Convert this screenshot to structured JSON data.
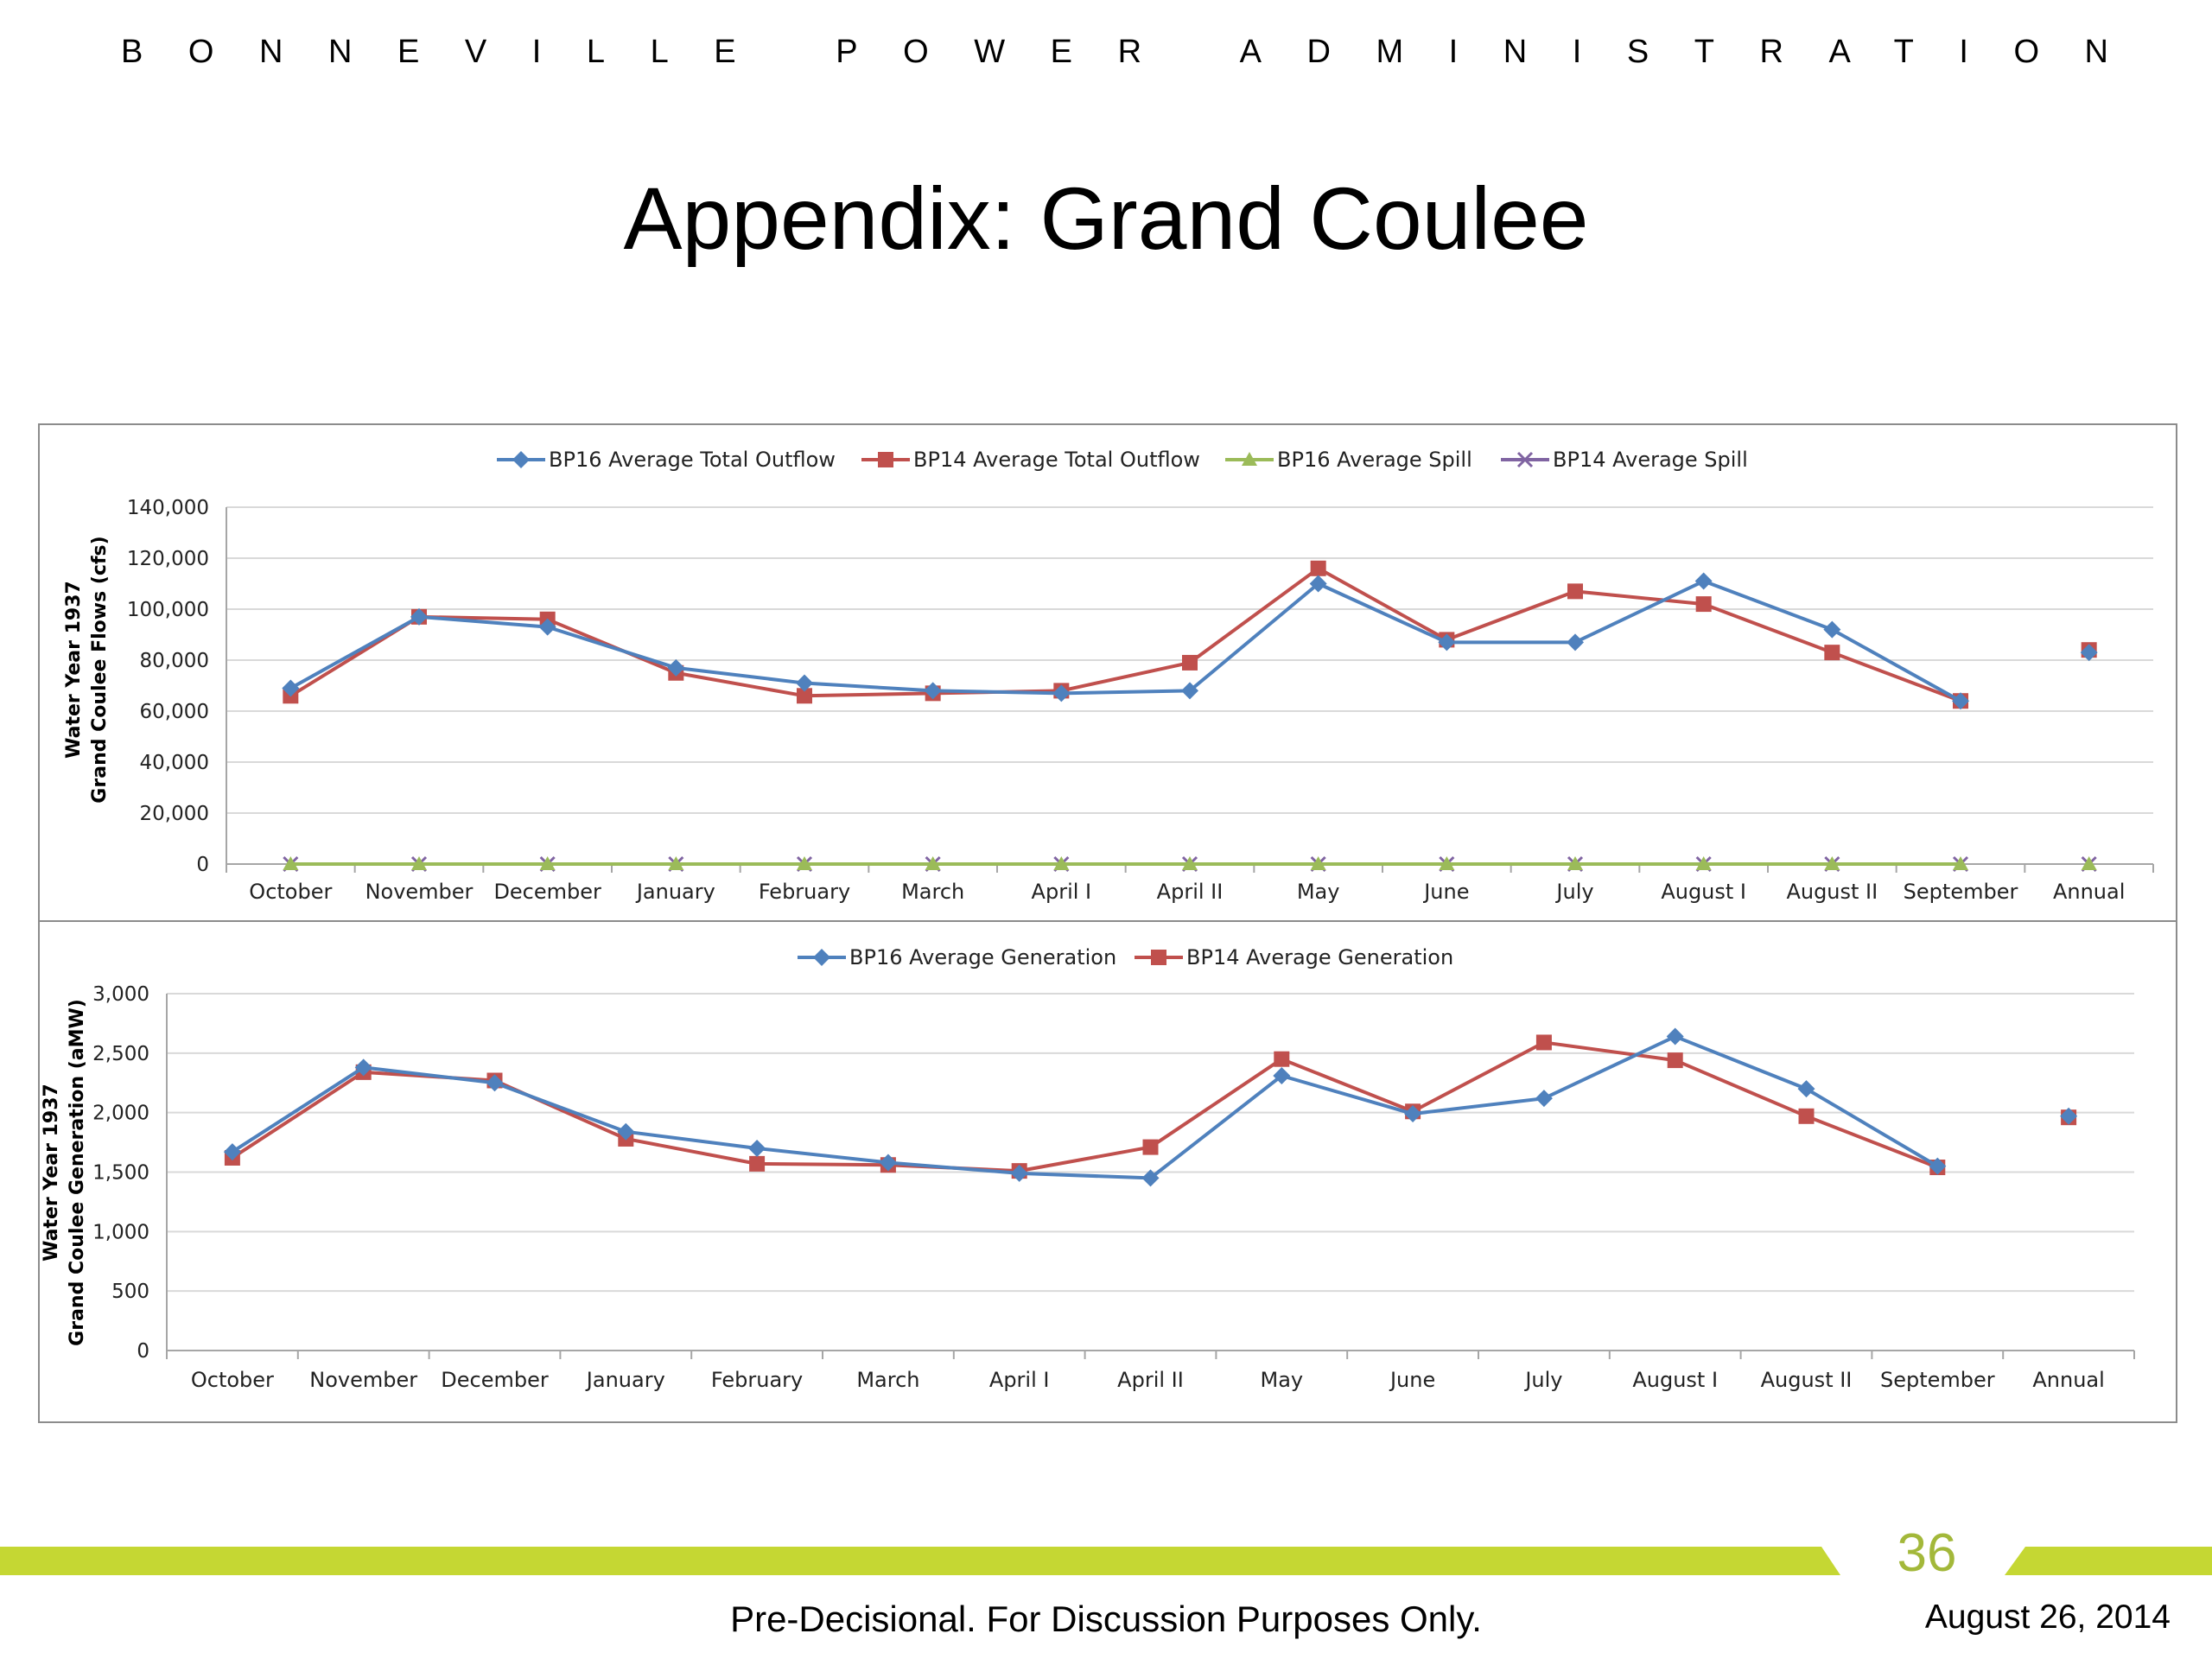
{
  "header": {
    "organization": "BONNEVILLE POWER ADMINISTRATION",
    "title": "Appendix:  Grand Coulee"
  },
  "footer": {
    "page_number": "36",
    "note": "Pre-Decisional.  For Discussion Purposes Only.",
    "date": "August 26, 2014"
  },
  "chart_data": [
    {
      "type": "line",
      "title": "",
      "xlabel": "",
      "ylabel": "Water Year 1937\nGrand Coulee Flows (cfs)",
      "ylim": [
        0,
        140000
      ],
      "yticks": [
        0,
        20000,
        40000,
        60000,
        80000,
        100000,
        120000,
        140000
      ],
      "ytick_labels": [
        "0",
        "20,000",
        "40,000",
        "60,000",
        "80,000",
        "100,000",
        "120,000",
        "140,000"
      ],
      "grid": true,
      "legend_position": "top-center",
      "categories": [
        "October",
        "November",
        "December",
        "January",
        "February",
        "March",
        "April I",
        "April II",
        "May",
        "June",
        "July",
        "August I",
        "August II",
        "September",
        "Annual"
      ],
      "series": [
        {
          "name": "BP16 Average Total Outflow",
          "color": "#4f81bd",
          "marker": "diamond",
          "values": [
            69000,
            97000,
            93000,
            77000,
            71000,
            68000,
            67000,
            68000,
            110000,
            87000,
            87000,
            111000,
            92000,
            64000,
            83000
          ]
        },
        {
          "name": "BP14 Average Total Outflow",
          "color": "#c0504d",
          "marker": "square",
          "values": [
            66000,
            97000,
            96000,
            75000,
            66000,
            67000,
            68000,
            79000,
            116000,
            88000,
            107000,
            102000,
            83000,
            64000,
            84000
          ]
        },
        {
          "name": "BP16 Average Spill",
          "color": "#9bbb59",
          "marker": "triangle",
          "values": [
            0,
            0,
            0,
            0,
            0,
            0,
            0,
            0,
            0,
            0,
            0,
            0,
            0,
            0,
            0
          ]
        },
        {
          "name": "BP14 Average Spill",
          "color": "#8064a2",
          "marker": "x",
          "values": [
            0,
            0,
            0,
            0,
            0,
            0,
            0,
            0,
            0,
            0,
            0,
            0,
            0,
            0,
            0
          ]
        }
      ]
    },
    {
      "type": "line",
      "title": "",
      "xlabel": "",
      "ylabel": "Water Year 1937\nGrand Coulee Generation (aMW)",
      "ylim": [
        0,
        3000
      ],
      "yticks": [
        0,
        500,
        1000,
        1500,
        2000,
        2500,
        3000
      ],
      "ytick_labels": [
        "0",
        "500",
        "1,000",
        "1,500",
        "2,000",
        "2,500",
        "3,000"
      ],
      "grid": true,
      "legend_position": "top-center",
      "categories": [
        "October",
        "November",
        "December",
        "January",
        "February",
        "March",
        "April I",
        "April II",
        "May",
        "June",
        "July",
        "August I",
        "August II",
        "September",
        "Annual"
      ],
      "series": [
        {
          "name": "BP16 Average Generation",
          "color": "#4f81bd",
          "marker": "diamond",
          "values": [
            1670,
            2380,
            2250,
            1840,
            1700,
            1580,
            1490,
            1450,
            2310,
            1990,
            2120,
            2640,
            2200,
            1550,
            1970
          ]
        },
        {
          "name": "BP14 Average Generation",
          "color": "#c0504d",
          "marker": "square",
          "values": [
            1620,
            2340,
            2270,
            1780,
            1570,
            1560,
            1510,
            1710,
            2450,
            2010,
            2590,
            2440,
            1970,
            1540,
            1960
          ]
        }
      ]
    }
  ]
}
